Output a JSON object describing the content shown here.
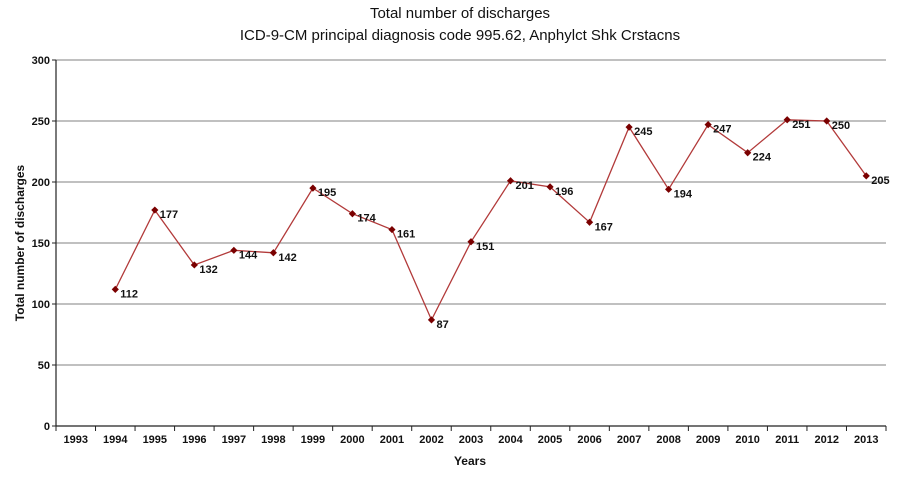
{
  "chart_data": {
    "type": "line",
    "title": "Total number of discharges",
    "subtitle": "ICD-9-CM principal diagnosis code 995.62, Anphylct Shk Crstacns",
    "xlabel": "Years",
    "ylabel": "Total number of discharges",
    "ylim": [
      0,
      300
    ],
    "yticks": [
      0,
      50,
      100,
      150,
      200,
      250,
      300
    ],
    "grid": true,
    "categories": [
      "1993",
      "1994",
      "1995",
      "1996",
      "1997",
      "1998",
      "1999",
      "2000",
      "2001",
      "2002",
      "2003",
      "2004",
      "2005",
      "2006",
      "2007",
      "2008",
      "2009",
      "2010",
      "2011",
      "2012",
      "2013"
    ],
    "series": [
      {
        "name": "Total number of discharges",
        "color": "#b23a3a",
        "marker_color": "#7a0000",
        "values": [
          null,
          112,
          177,
          132,
          144,
          142,
          195,
          174,
          161,
          87,
          151,
          201,
          196,
          167,
          245,
          194,
          247,
          224,
          251,
          250,
          205
        ]
      }
    ]
  }
}
